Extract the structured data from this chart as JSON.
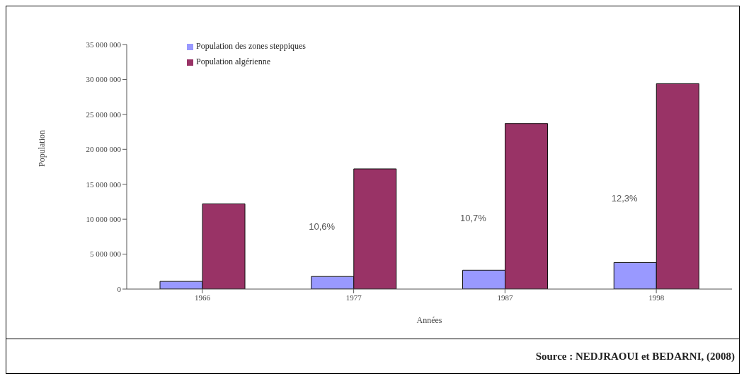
{
  "chart_data": {
    "type": "bar",
    "xlabel": "Années",
    "ylabel": "Population",
    "categories": [
      "1966",
      "1977",
      "1987",
      "1998"
    ],
    "series": [
      {
        "name": "Population des zones steppiques",
        "color": "#9999ff",
        "values": [
          1100000,
          1800000,
          2700000,
          3800000
        ]
      },
      {
        "name": "Population algérienne",
        "color": "#993366",
        "values": [
          12200000,
          17200000,
          23700000,
          29400000
        ]
      }
    ],
    "ylim": [
      0,
      35000000
    ],
    "yticks": [
      {
        "value": 0,
        "label": "0"
      },
      {
        "value": 5000000,
        "label": "5 000 000"
      },
      {
        "value": 10000000,
        "label": "10 000 000"
      },
      {
        "value": 15000000,
        "label": "15 000 000"
      },
      {
        "value": 20000000,
        "label": "20 000 000"
      },
      {
        "value": 25000000,
        "label": "25 000 000"
      },
      {
        "value": 30000000,
        "label": "30 000 000"
      },
      {
        "value": 35000000,
        "label": "35 000 000"
      }
    ],
    "grid": false,
    "legend": "top left",
    "annotations": [
      {
        "text": "10,6%",
        "x": "1977",
        "y": 9000000
      },
      {
        "text": "10,7%",
        "x": "1987",
        "y": 10200000
      },
      {
        "text": "12,3%",
        "x": "1998",
        "y": 13000000
      },
      "Source : NEDJRAOUI et  BEDARNI, (2008)"
    ]
  }
}
